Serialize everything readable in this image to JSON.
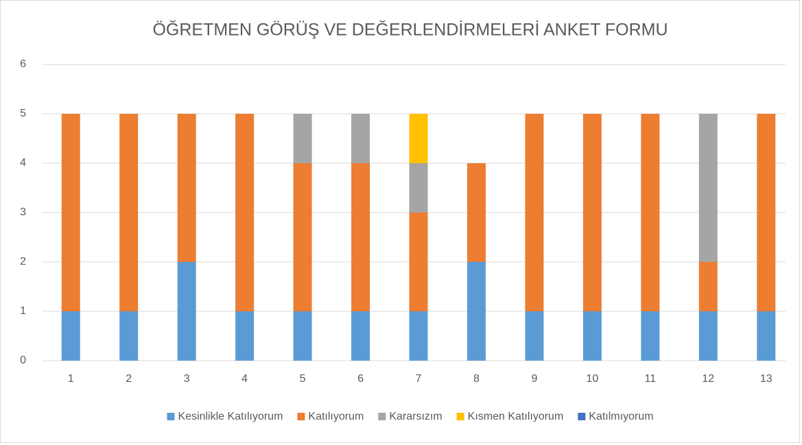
{
  "chart_data": {
    "type": "bar",
    "stacked": true,
    "title": "ÖĞRETMEN GÖRÜŞ VE DEĞERLENDİRMELERİ ANKET FORMU",
    "categories": [
      "1",
      "2",
      "3",
      "4",
      "5",
      "6",
      "7",
      "8",
      "9",
      "10",
      "11",
      "12",
      "13"
    ],
    "series": [
      {
        "name": "Kesinlikle Katılıyorum",
        "color": "#5b9bd5",
        "values": [
          1,
          1,
          2,
          1,
          1,
          1,
          1,
          2,
          1,
          1,
          1,
          1,
          1
        ]
      },
      {
        "name": "Katılıyorum",
        "color": "#ed7d31",
        "values": [
          4,
          4,
          3,
          4,
          3,
          3,
          2,
          2,
          4,
          4,
          4,
          1,
          4
        ]
      },
      {
        "name": "Kararsızım",
        "color": "#a5a5a5",
        "values": [
          0,
          0,
          0,
          0,
          1,
          1,
          1,
          0,
          0,
          0,
          0,
          3,
          0
        ]
      },
      {
        "name": "Kısmen Katılıyorum",
        "color": "#ffc000",
        "values": [
          0,
          0,
          0,
          0,
          0,
          0,
          1,
          0,
          0,
          0,
          0,
          0,
          0
        ]
      },
      {
        "name": "Katılmıyorum",
        "color": "#4472c4",
        "values": [
          0,
          0,
          0,
          0,
          0,
          0,
          0,
          0,
          0,
          0,
          0,
          0,
          0
        ]
      }
    ],
    "ylim": [
      0,
      6
    ],
    "yticks": [
      0,
      1,
      2,
      3,
      4,
      5,
      6
    ],
    "grid": true,
    "legend": "bottom"
  }
}
